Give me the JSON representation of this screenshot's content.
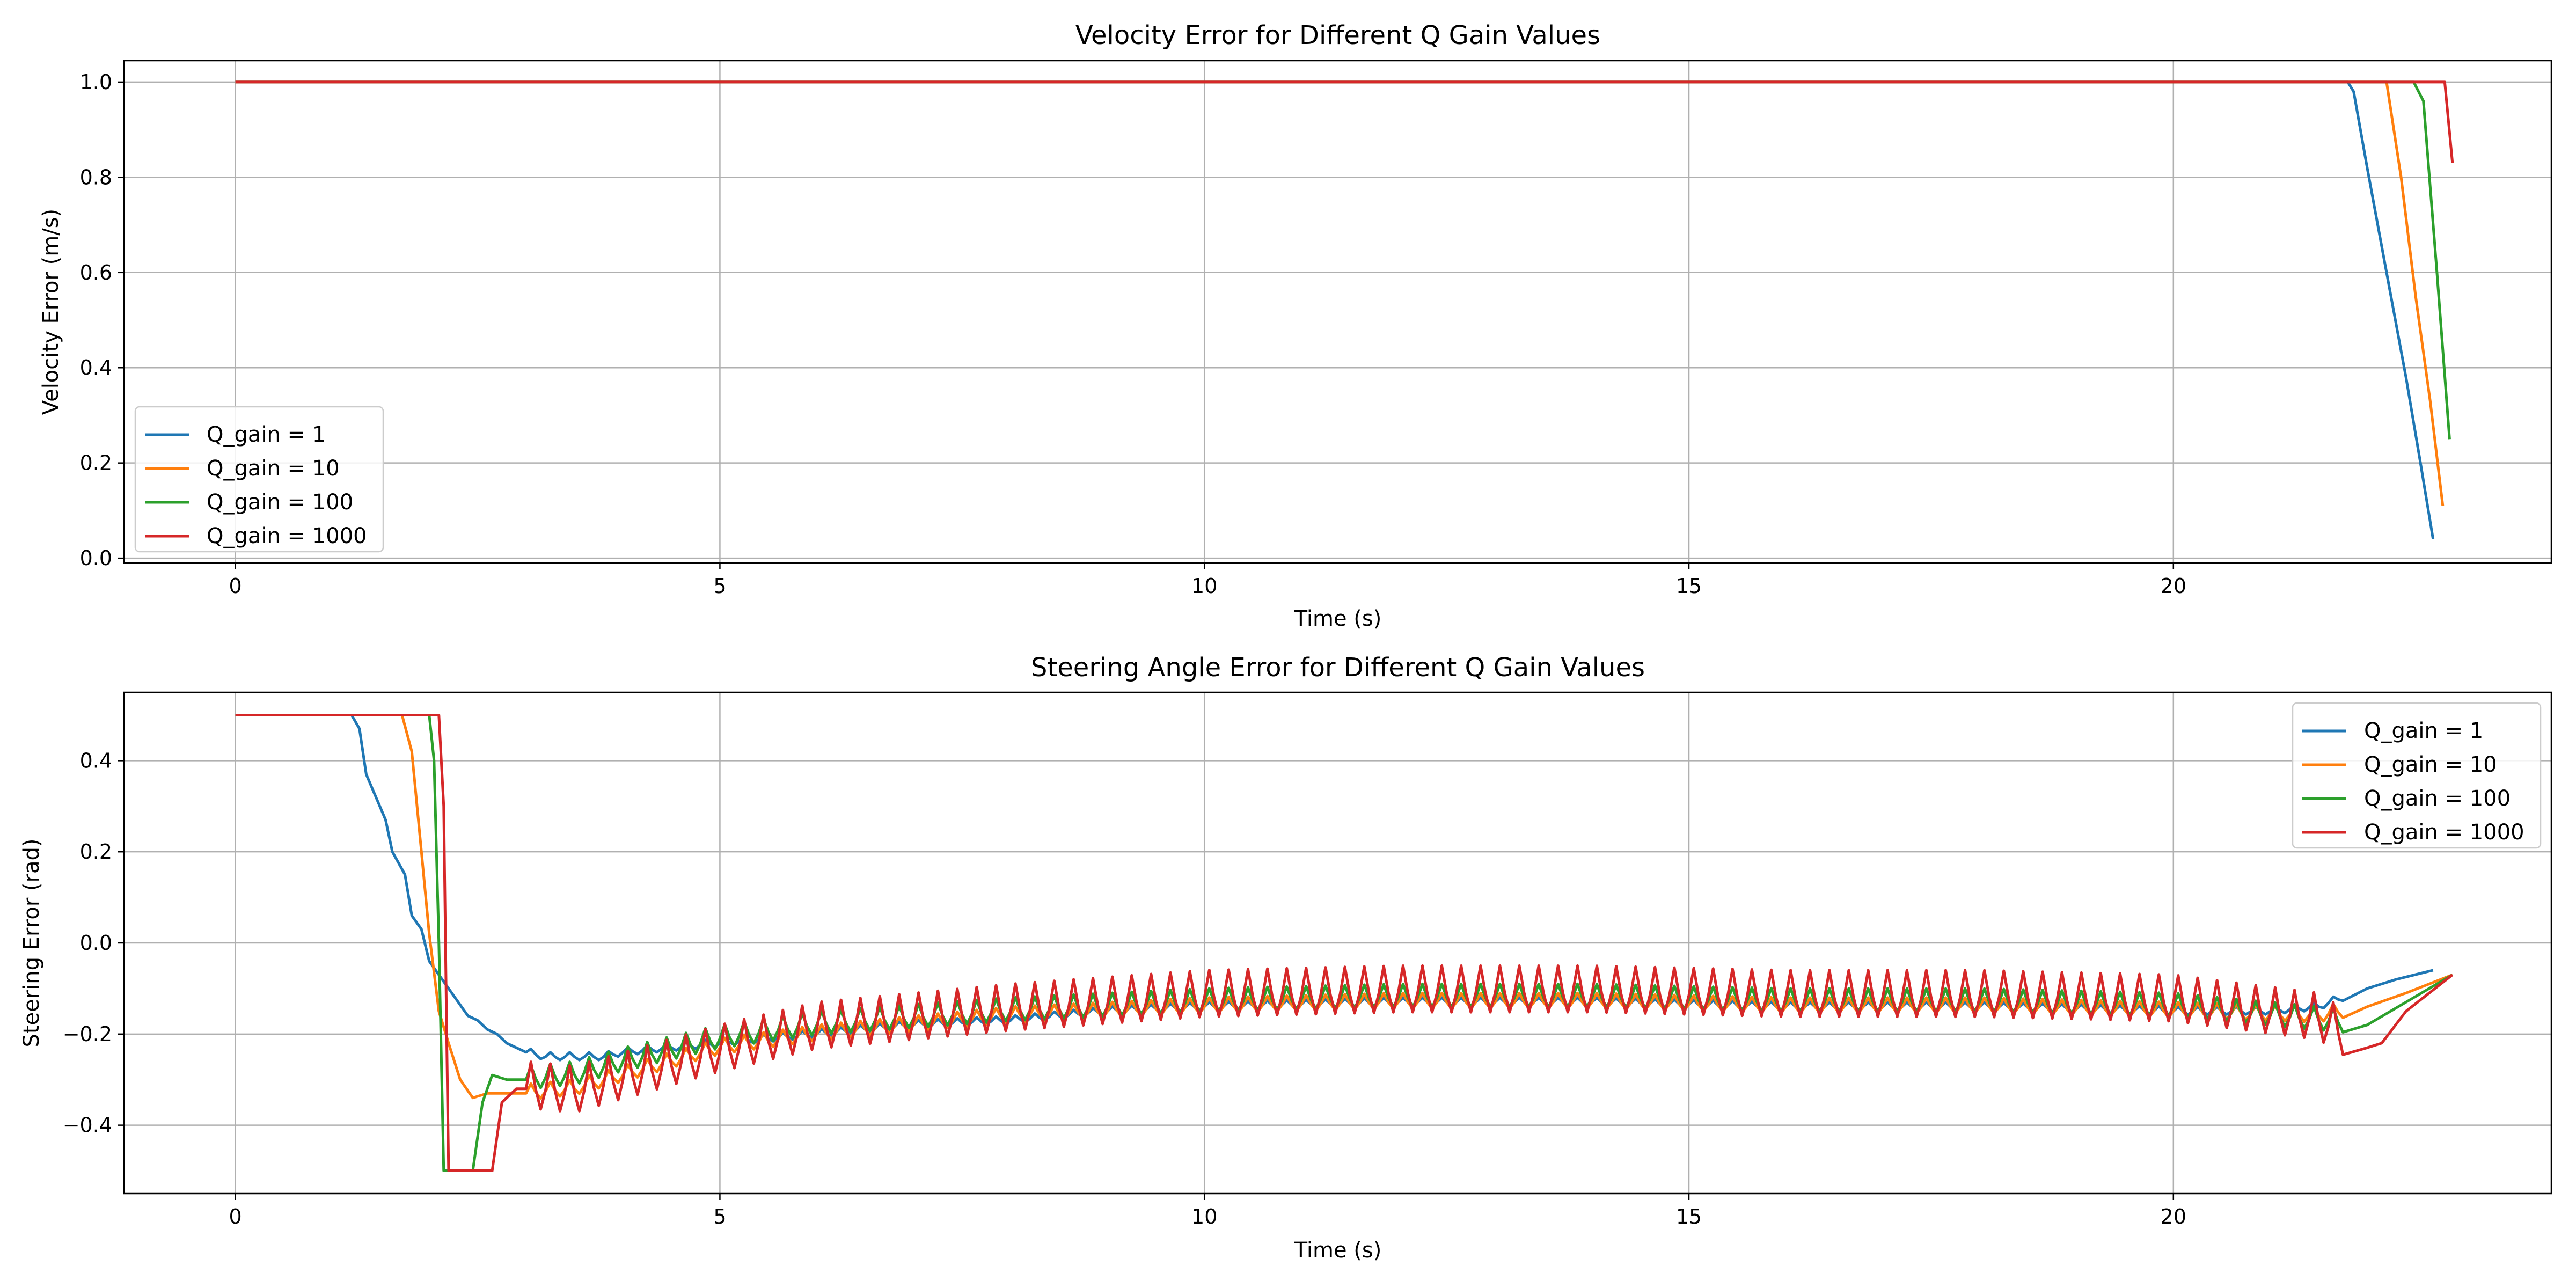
{
  "chart_data": [
    {
      "type": "line",
      "title": "Velocity Error for Different Q Gain Values",
      "xlabel": "Time (s)",
      "ylabel": "Velocity Error (m/s)",
      "xlim": [
        -1.15,
        23.9
      ],
      "ylim": [
        -0.01,
        1.045
      ],
      "xticks": [
        0,
        5,
        10,
        15,
        20
      ],
      "yticks": [
        0.0,
        0.2,
        0.4,
        0.6,
        0.8,
        1.0
      ],
      "ytick_labels": [
        "0.0",
        "0.2",
        "0.4",
        "0.6",
        "0.8",
        "1.0"
      ],
      "grid": true,
      "legend": "lower-left",
      "series": [
        {
          "name": "Q_gain = 1",
          "color": "#1f77b4",
          "points": [
            [
              0,
              1.0
            ],
            [
              21.8,
              1.0
            ],
            [
              21.86,
              0.98
            ],
            [
              22.0,
              0.82
            ],
            [
              22.2,
              0.6
            ],
            [
              22.4,
              0.38
            ],
            [
              22.55,
              0.2
            ],
            [
              22.68,
              0.04
            ]
          ]
        },
        {
          "name": "Q_gain = 10",
          "color": "#ff7f0e",
          "points": [
            [
              0,
              1.0
            ],
            [
              22.2,
              1.0
            ],
            [
              22.35,
              0.8
            ],
            [
              22.5,
              0.55
            ],
            [
              22.65,
              0.33
            ],
            [
              22.78,
              0.11
            ]
          ]
        },
        {
          "name": "Q_gain = 100",
          "color": "#2ca02c",
          "points": [
            [
              0,
              1.0
            ],
            [
              22.48,
              1.0
            ],
            [
              22.58,
              0.96
            ],
            [
              22.72,
              0.6
            ],
            [
              22.85,
              0.25
            ]
          ]
        },
        {
          "name": "Q_gain = 1000",
          "color": "#d62728",
          "points": [
            [
              0,
              1.0
            ],
            [
              22.8,
              1.0
            ],
            [
              22.88,
              0.83
            ]
          ]
        }
      ]
    },
    {
      "type": "line",
      "title": "Steering Angle Error for Different Q Gain Values",
      "xlabel": "Time (s)",
      "ylabel": "Steering Error (rad)",
      "xlim": [
        -1.15,
        23.9
      ],
      "ylim": [
        -0.55,
        0.55
      ],
      "xticks": [
        0,
        5,
        10,
        15,
        20
      ],
      "yticks": [
        -0.4,
        -0.2,
        0.0,
        0.2,
        0.4
      ],
      "ytick_labels": [
        "−0.4",
        "−0.2",
        "0.0",
        "0.2",
        "0.4"
      ],
      "grid": true,
      "legend": "upper-right",
      "series": [
        {
          "name": "Q_gain = 1",
          "color": "#1f77b4",
          "points": [
            [
              0,
              0.5
            ],
            [
              1.2,
              0.5
            ],
            [
              1.28,
              0.47
            ],
            [
              1.35,
              0.37
            ],
            [
              1.45,
              0.32
            ],
            [
              1.55,
              0.27
            ],
            [
              1.62,
              0.2
            ],
            [
              1.75,
              0.15
            ],
            [
              1.82,
              0.06
            ],
            [
              1.92,
              0.03
            ],
            [
              2.0,
              -0.04
            ],
            [
              2.1,
              -0.07
            ],
            [
              2.2,
              -0.1
            ],
            [
              2.3,
              -0.13
            ],
            [
              2.4,
              -0.16
            ],
            [
              2.5,
              -0.17
            ],
            [
              2.6,
              -0.19
            ],
            [
              2.7,
              -0.2
            ],
            [
              2.8,
              -0.22
            ],
            [
              2.9,
              -0.23
            ],
            [
              3.0,
              -0.24
            ],
            [
              3.2,
              -0.25
            ],
            [
              3.5,
              -0.25
            ],
            [
              3.8,
              -0.25
            ],
            [
              4.0,
              -0.24
            ],
            [
              4.5,
              -0.23
            ],
            [
              5.0,
              -0.22
            ],
            [
              6.0,
              -0.2
            ],
            [
              7.0,
              -0.18
            ],
            [
              8.0,
              -0.17
            ],
            [
              9.0,
              -0.15
            ],
            [
              10.0,
              -0.14
            ],
            [
              12.0,
              -0.13
            ],
            [
              14.0,
              -0.13
            ],
            [
              16.0,
              -0.14
            ],
            [
              18.0,
              -0.14
            ],
            [
              20.0,
              -0.15
            ],
            [
              21.0,
              -0.15
            ],
            [
              21.5,
              -0.14
            ],
            [
              22.0,
              -0.1
            ],
            [
              22.3,
              -0.08
            ],
            [
              22.68,
              -0.06
            ]
          ]
        },
        {
          "name": "Q_gain = 10",
          "color": "#ff7f0e",
          "points": [
            [
              0,
              0.5
            ],
            [
              1.72,
              0.5
            ],
            [
              1.82,
              0.42
            ],
            [
              1.92,
              0.2
            ],
            [
              2.0,
              0.02
            ],
            [
              2.1,
              -0.15
            ],
            [
              2.2,
              -0.22
            ],
            [
              2.32,
              -0.3
            ],
            [
              2.45,
              -0.34
            ],
            [
              2.6,
              -0.33
            ],
            [
              2.8,
              -0.33
            ],
            [
              3.0,
              -0.33
            ],
            [
              3.5,
              -0.32
            ],
            [
              4.0,
              -0.29
            ],
            [
              4.5,
              -0.26
            ],
            [
              5.0,
              -0.23
            ],
            [
              6.0,
              -0.2
            ],
            [
              7.0,
              -0.18
            ],
            [
              8.0,
              -0.16
            ],
            [
              10.0,
              -0.14
            ],
            [
              12.0,
              -0.13
            ],
            [
              14.0,
              -0.13
            ],
            [
              16.0,
              -0.14
            ],
            [
              18.0,
              -0.14
            ],
            [
              20.0,
              -0.15
            ],
            [
              21.5,
              -0.16
            ],
            [
              22.0,
              -0.14
            ],
            [
              22.4,
              -0.11
            ],
            [
              22.88,
              -0.07
            ]
          ]
        },
        {
          "name": "Q_gain = 100",
          "color": "#2ca02c",
          "points": [
            [
              0,
              0.5
            ],
            [
              2.0,
              0.5
            ],
            [
              2.05,
              0.4
            ],
            [
              2.1,
              0.0
            ],
            [
              2.15,
              -0.5
            ],
            [
              2.45,
              -0.5
            ],
            [
              2.55,
              -0.35
            ],
            [
              2.65,
              -0.29
            ],
            [
              2.8,
              -0.3
            ],
            [
              3.0,
              -0.3
            ],
            [
              3.5,
              -0.29
            ],
            [
              4.0,
              -0.26
            ],
            [
              5.0,
              -0.21
            ],
            [
              6.0,
              -0.18
            ],
            [
              8.0,
              -0.15
            ],
            [
              10.0,
              -0.13
            ],
            [
              12.0,
              -0.12
            ],
            [
              14.0,
              -0.12
            ],
            [
              16.0,
              -0.13
            ],
            [
              18.0,
              -0.13
            ],
            [
              20.0,
              -0.14
            ],
            [
              21.5,
              -0.17
            ],
            [
              22.0,
              -0.18
            ],
            [
              22.4,
              -0.13
            ],
            [
              22.88,
              -0.07
            ]
          ]
        },
        {
          "name": "Q_gain = 1000",
          "color": "#d62728",
          "points": [
            [
              0,
              0.5
            ],
            [
              2.1,
              0.5
            ],
            [
              2.15,
              0.3
            ],
            [
              2.18,
              -0.2
            ],
            [
              2.2,
              -0.5
            ],
            [
              2.65,
              -0.5
            ],
            [
              2.75,
              -0.35
            ],
            [
              2.9,
              -0.32
            ],
            [
              3.0,
              -0.32
            ],
            [
              3.5,
              -0.33
            ],
            [
              4.0,
              -0.3
            ],
            [
              5.0,
              -0.24
            ],
            [
              6.0,
              -0.19
            ],
            [
              8.0,
              -0.15
            ],
            [
              10.0,
              -0.12
            ],
            [
              12.0,
              -0.11
            ],
            [
              14.0,
              -0.11
            ],
            [
              16.0,
              -0.12
            ],
            [
              18.0,
              -0.12
            ],
            [
              20.0,
              -0.13
            ],
            [
              21.5,
              -0.17
            ],
            [
              21.8,
              -0.21
            ],
            [
              22.0,
              -0.23
            ],
            [
              22.15,
              -0.22
            ],
            [
              22.4,
              -0.15
            ],
            [
              22.88,
              -0.07
            ]
          ]
        }
      ],
      "oscillation": {
        "amplitude": {
          "Q_gain = 1": 0.01,
          "Q_gain = 10": 0.02,
          "Q_gain = 100": 0.03,
          "Q_gain = 1000": 0.06
        },
        "period_s": 0.2,
        "start_s": 3.0,
        "end_s": 21.8
      }
    }
  ]
}
